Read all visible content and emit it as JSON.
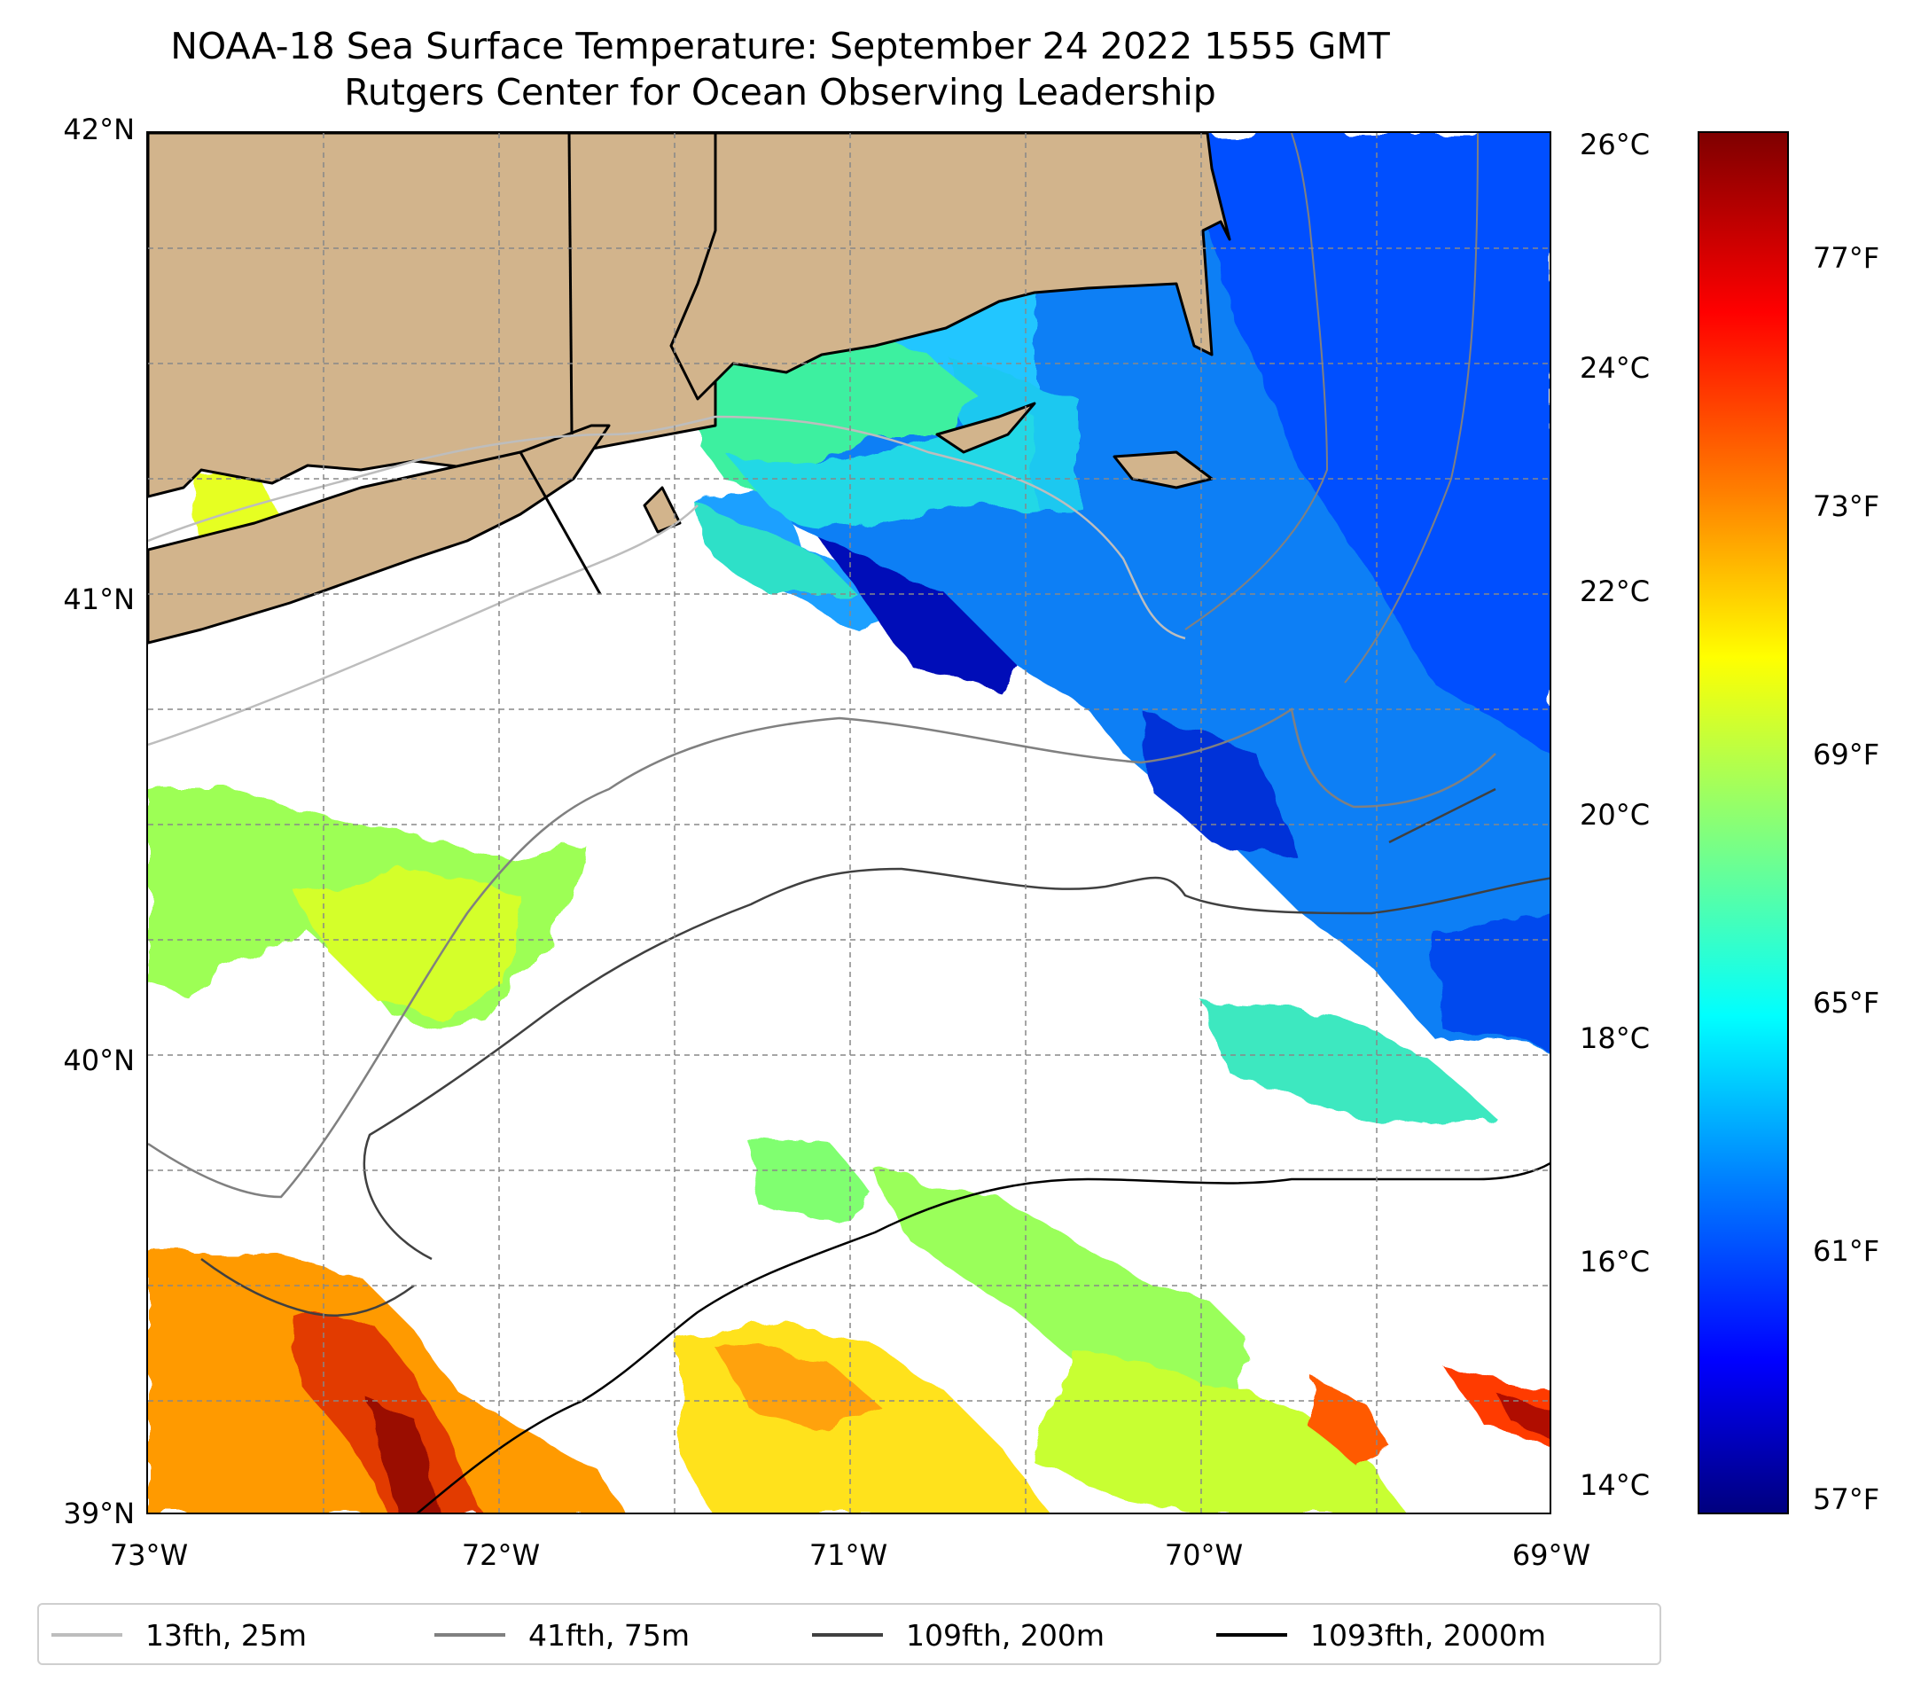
{
  "title": {
    "line1": "NOAA-18 Sea Surface Temperature: September 24 2022 1555 GMT",
    "line2": "Rutgers Center for Ocean Observing Leadership"
  },
  "map": {
    "lon_range": [
      -73,
      -69
    ],
    "lat_range": [
      39,
      42
    ],
    "land_color": "#d2b48c",
    "grid": true,
    "lat_ticks": [
      "42°N",
      "41°N",
      "40°N",
      "39°N"
    ],
    "lon_ticks": [
      "73°W",
      "72°W",
      "71°W",
      "70°W",
      "69°W"
    ]
  },
  "colorbar": {
    "colormap": "jet",
    "celsius_ticks": [
      "26°C",
      "24°C",
      "22°C",
      "20°C",
      "18°C",
      "16°C",
      "14°C"
    ],
    "fahrenheit_ticks": [
      "77°F",
      "73°F",
      "69°F",
      "65°F",
      "61°F",
      "57°F"
    ]
  },
  "legend": {
    "placement": "bottom",
    "items": [
      {
        "label": "13fth, 25m",
        "color": "#bdbdbd"
      },
      {
        "label": "41fth, 75m",
        "color": "#808080"
      },
      {
        "label": "109fth, 200m",
        "color": "#404040"
      },
      {
        "label": "1093fth, 2000m",
        "color": "#000000"
      }
    ]
  }
}
